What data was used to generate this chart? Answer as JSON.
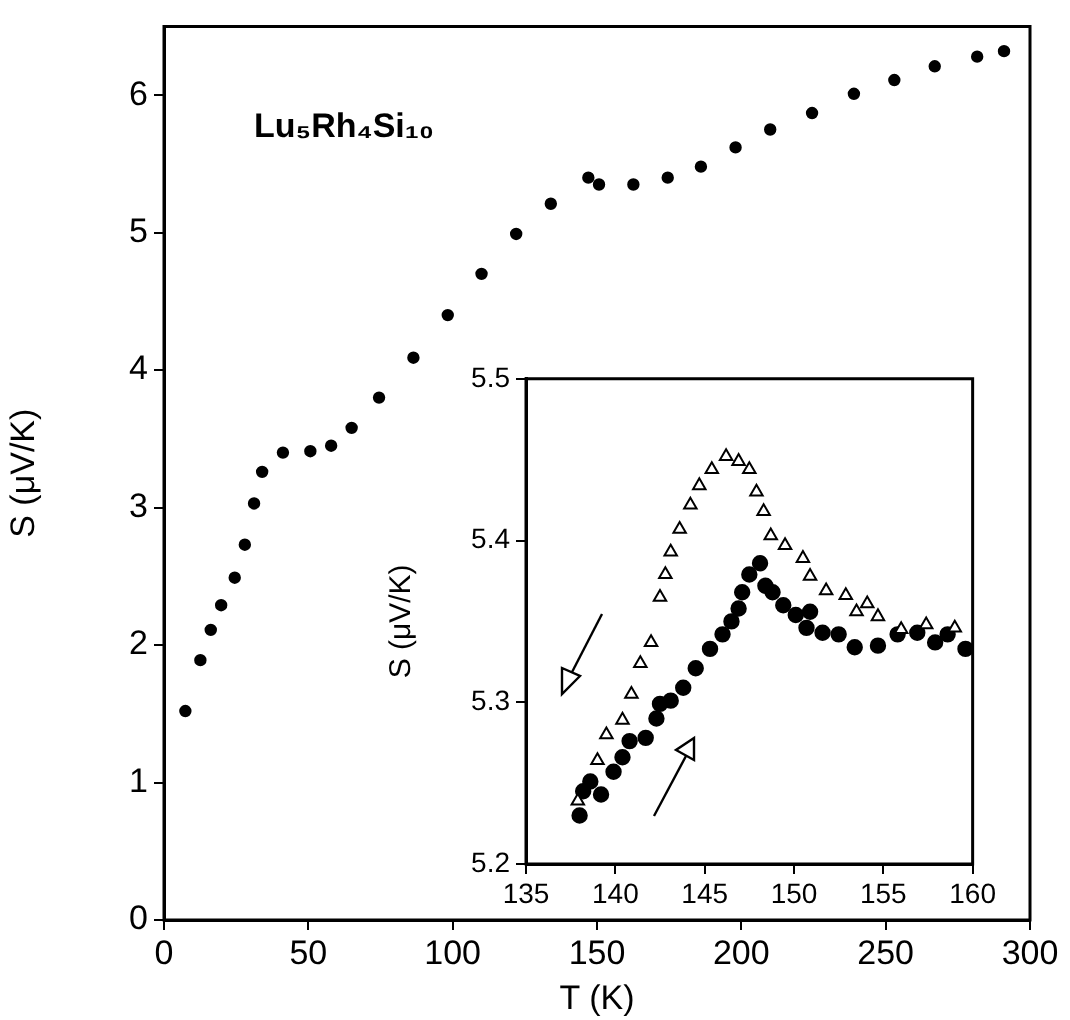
{
  "chart_data": [
    {
      "type": "scatter",
      "xlabel": "T (K)",
      "ylabel": "S (μV/K)",
      "xlim": [
        0,
        300
      ],
      "xticks": [
        0,
        50,
        100,
        150,
        200,
        250,
        300
      ],
      "ylim": [
        0,
        6.5
      ],
      "yticks": [
        0,
        1,
        2,
        3,
        4,
        5,
        6
      ],
      "grid": false,
      "marker": "circle",
      "annotations": [
        "Lu₅Rh₄Si₁₀"
      ],
      "series": [
        {
          "color": "#000000",
          "x": [
            7.4,
            12.6,
            16.2,
            19.8,
            24.5,
            28,
            31.2,
            34,
            41.2,
            50.7,
            57.9,
            65,
            74.5,
            86.4,
            98.3,
            110,
            122,
            134,
            147,
            150.7,
            162.6,
            174.5,
            186,
            198,
            210,
            224.5,
            239,
            253,
            267,
            281.7,
            291
          ],
          "values": [
            1.52,
            1.89,
            2.11,
            2.29,
            2.49,
            2.73,
            3.03,
            3.26,
            3.4,
            3.41,
            3.45,
            3.58,
            3.8,
            4.09,
            4.4,
            4.7,
            4.99,
            5.21,
            5.4,
            5.35,
            5.35,
            5.4,
            5.48,
            5.62,
            5.75,
            5.87,
            6.01,
            6.11,
            6.21,
            6.28,
            6.32
          ]
        }
      ]
    },
    {
      "type": "scatter",
      "ylabel": "S (μV/K)",
      "xlim": [
        135,
        160
      ],
      "xticks": [
        135,
        140,
        145,
        150,
        155,
        160
      ],
      "ylim": [
        5.2,
        5.5
      ],
      "yticks": [
        5.2,
        5.3,
        5.4,
        5.5
      ],
      "grid": false,
      "series": [
        {
          "color": "#000000",
          "marker": "triangle",
          "x": [
            137.9,
            139.0,
            139.5,
            140.4,
            140.9,
            141.4,
            142.0,
            142.5,
            142.8,
            143.1,
            143.6,
            144.2,
            144.7,
            145.4,
            146.2,
            146.9,
            147.5,
            147.9,
            148.3,
            148.7,
            149.5,
            150.5,
            150.9,
            151.8,
            152.9,
            153.5,
            154.1,
            154.7,
            156.0,
            157.4,
            159.0
          ],
          "values": [
            5.239,
            5.264,
            5.28,
            5.289,
            5.305,
            5.324,
            5.337,
            5.365,
            5.379,
            5.393,
            5.407,
            5.422,
            5.434,
            5.444,
            5.452,
            5.449,
            5.444,
            5.43,
            5.418,
            5.403,
            5.397,
            5.389,
            5.378,
            5.369,
            5.366,
            5.356,
            5.361,
            5.353,
            5.345,
            5.348,
            5.346
          ]
        },
        {
          "color": "#000000",
          "marker": "circle",
          "x": [
            138.0,
            138.2,
            138.6,
            139.2,
            139.9,
            140.4,
            140.8,
            141.7,
            142.3,
            142.5,
            143.1,
            143.8,
            144.5,
            145.3,
            146.0,
            146.5,
            146.9,
            147.1,
            147.5,
            148.1,
            148.4,
            148.8,
            149.4,
            150.1,
            150.9,
            150.7,
            151.6,
            152.5,
            153.4,
            154.7,
            155.8,
            156.9,
            157.9,
            158.6,
            159.6
          ],
          "values": [
            5.23,
            5.245,
            5.251,
            5.243,
            5.257,
            5.266,
            5.276,
            5.278,
            5.29,
            5.299,
            5.301,
            5.309,
            5.321,
            5.333,
            5.342,
            5.35,
            5.358,
            5.368,
            5.379,
            5.386,
            5.372,
            5.368,
            5.36,
            5.354,
            5.356,
            5.346,
            5.343,
            5.342,
            5.334,
            5.335,
            5.342,
            5.343,
            5.337,
            5.342,
            5.333
          ]
        }
      ]
    }
  ]
}
